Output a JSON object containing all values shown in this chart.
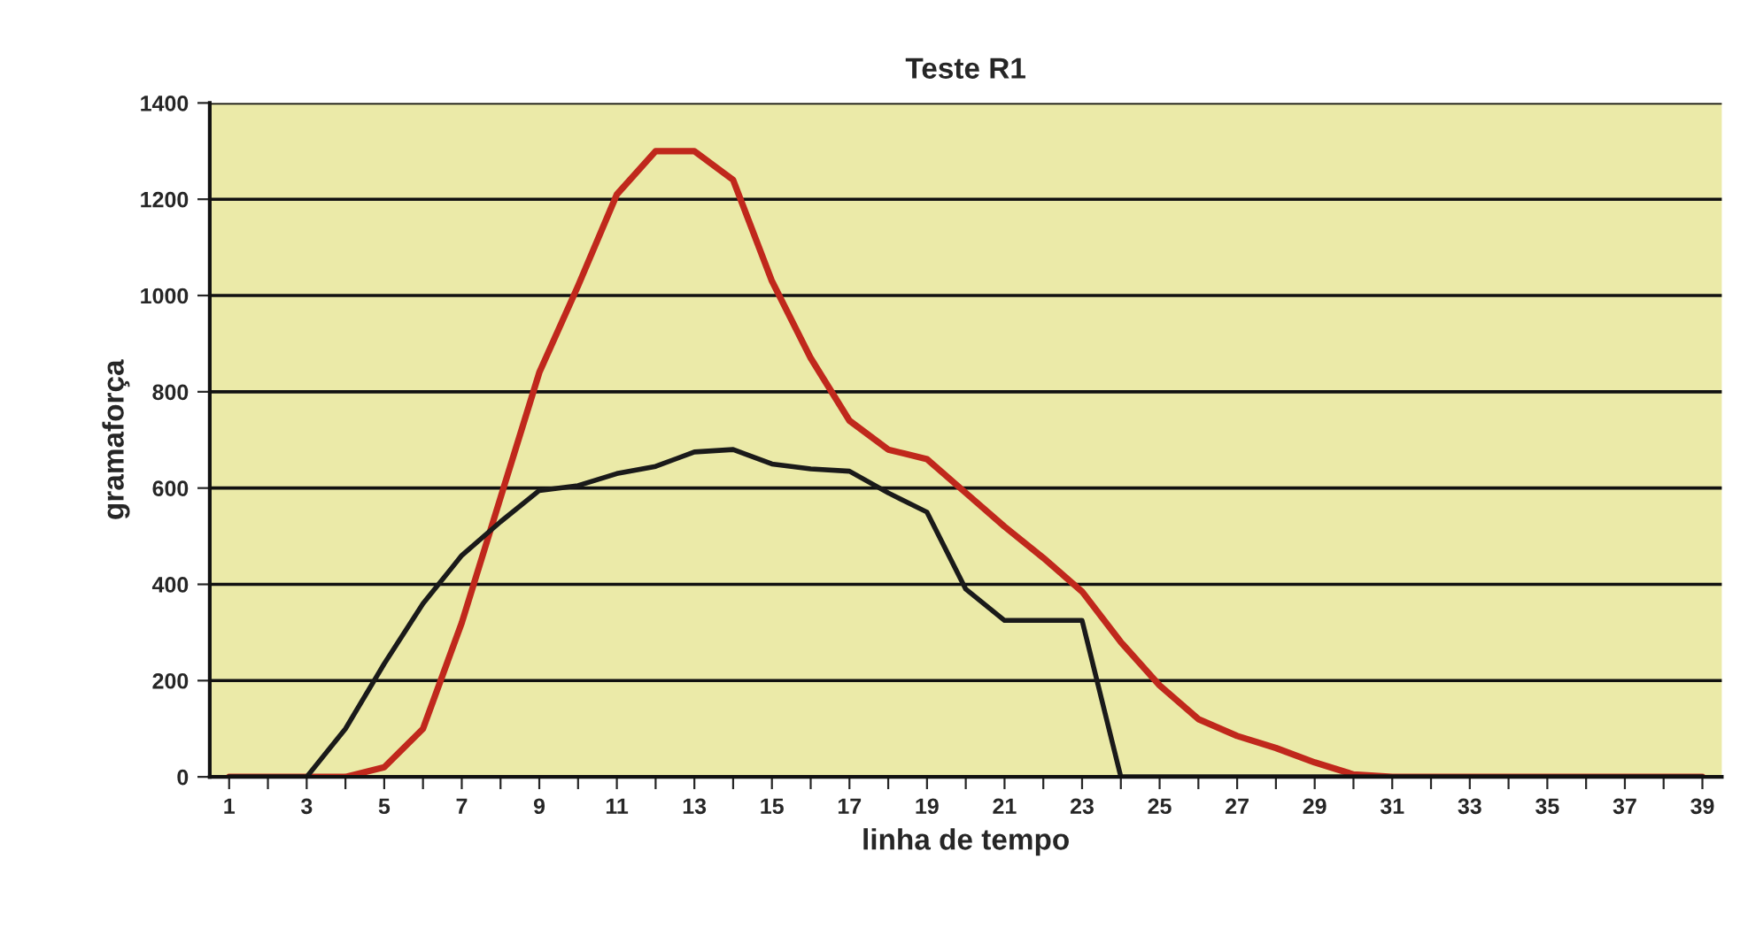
{
  "chart_data": {
    "type": "line",
    "title": "Teste R1",
    "xlabel": "linha de tempo",
    "ylabel": "gramaforça",
    "categories": [
      "1",
      null,
      "3",
      null,
      "5",
      null,
      "7",
      null,
      "9",
      null,
      "11",
      null,
      "13",
      null,
      "15",
      null,
      "17",
      null,
      "19",
      null,
      "21",
      null,
      "23",
      null,
      "25",
      null,
      "27",
      null,
      "29",
      null,
      "31",
      null,
      "33",
      null,
      "35",
      null,
      "37",
      null,
      "39"
    ],
    "series": [
      {
        "color": "#c0281c",
        "values": [
          0,
          0,
          0,
          0,
          20,
          100,
          320,
          580,
          840,
          1020,
          1210,
          1300,
          1300,
          1240,
          1030,
          870,
          740,
          680,
          660,
          590,
          520,
          455,
          385,
          280,
          190,
          120,
          85,
          60,
          30,
          5,
          0,
          0,
          0,
          0,
          0,
          0,
          0,
          0,
          0
        ]
      },
      {
        "color": "#1a1a1a",
        "values": [
          0,
          0,
          0,
          100,
          235,
          360,
          460,
          530,
          595,
          605,
          630,
          645,
          675,
          680,
          650,
          640,
          635,
          590,
          550,
          390,
          325,
          325,
          325,
          0,
          0,
          0,
          0,
          0,
          0,
          0,
          0,
          0,
          0,
          0,
          0,
          0,
          0,
          0,
          0
        ]
      }
    ],
    "ylim": [
      0,
      1400
    ],
    "yticks": [
      0,
      200,
      400,
      600,
      800,
      1000,
      1200,
      1400
    ],
    "grid": "y",
    "marker": "none",
    "line_style": "solid"
  }
}
